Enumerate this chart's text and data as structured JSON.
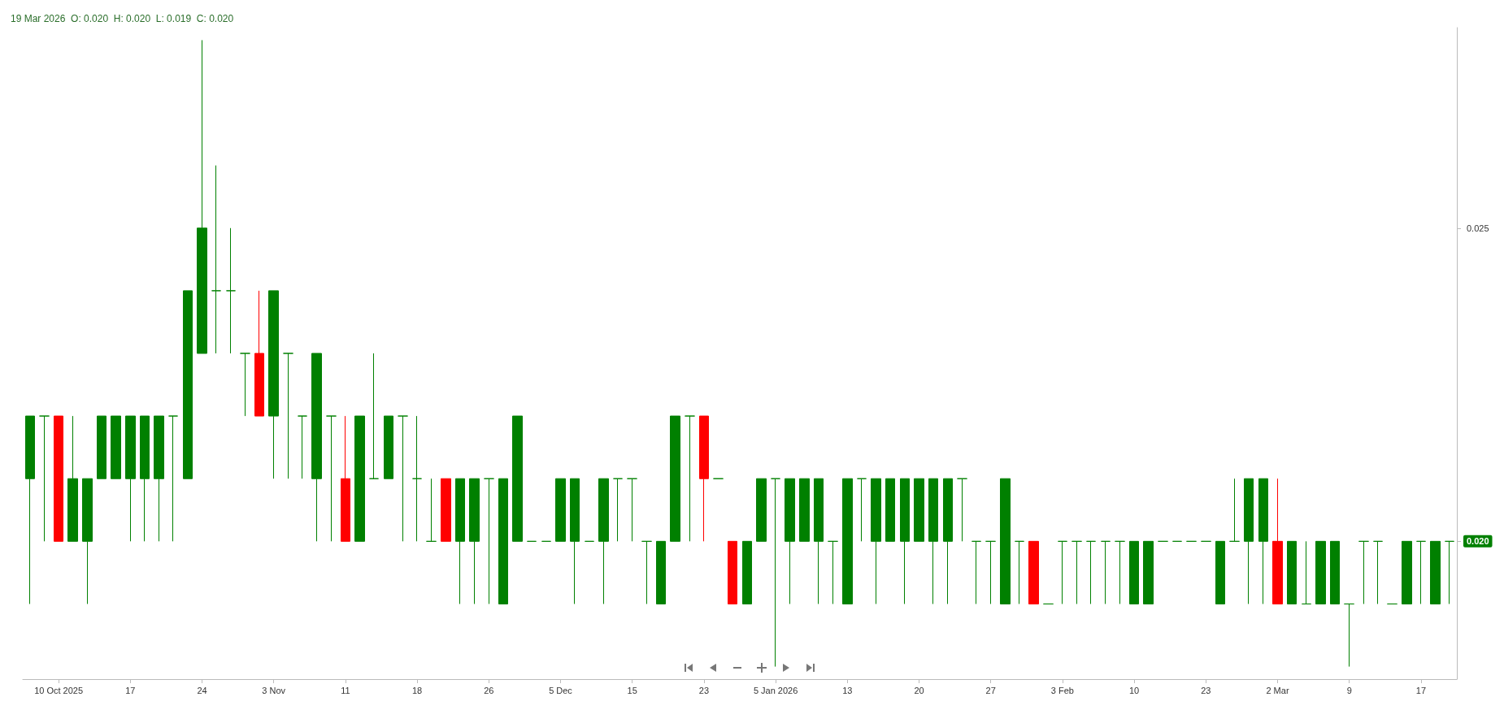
{
  "chart_data": {
    "type": "candlestick",
    "title": "19 Mar 2026  O: 0.020  H: 0.020  L: 0.019  C: 0.020",
    "categories": [
      null,
      null,
      "10 Oct 2025",
      null,
      null,
      null,
      null,
      "17",
      null,
      null,
      null,
      null,
      "24",
      null,
      null,
      null,
      null,
      "3 Nov",
      null,
      null,
      null,
      null,
      "11",
      null,
      null,
      null,
      null,
      "18",
      null,
      null,
      null,
      null,
      "26",
      null,
      null,
      null,
      null,
      "5 Dec",
      null,
      null,
      null,
      null,
      "15",
      null,
      null,
      null,
      null,
      "23",
      null,
      null,
      null,
      null,
      "5 Jan 2026",
      null,
      null,
      null,
      null,
      "13",
      null,
      null,
      null,
      null,
      "20",
      null,
      null,
      null,
      null,
      "27",
      null,
      null,
      null,
      null,
      "3 Feb",
      null,
      null,
      null,
      null,
      "10",
      null,
      null,
      null,
      null,
      "23",
      null,
      null,
      null,
      null,
      "2 Mar",
      null,
      null,
      null,
      null,
      "9",
      null,
      null,
      null,
      null,
      "17",
      null,
      null
    ],
    "ohlc": [
      [
        0.021,
        0.022,
        0.019,
        0.022
      ],
      [
        0.022,
        0.022,
        0.02,
        0.022
      ],
      [
        0.022,
        0.022,
        0.02,
        0.02
      ],
      [
        0.02,
        0.022,
        0.02,
        0.021
      ],
      [
        0.02,
        0.021,
        0.019,
        0.021
      ],
      [
        0.021,
        0.022,
        0.021,
        0.022
      ],
      [
        0.021,
        0.022,
        0.021,
        0.022
      ],
      [
        0.021,
        0.022,
        0.02,
        0.022
      ],
      [
        0.021,
        0.022,
        0.02,
        0.022
      ],
      [
        0.021,
        0.022,
        0.02,
        0.022
      ],
      [
        0.022,
        0.022,
        0.02,
        0.022
      ],
      [
        0.021,
        0.024,
        0.021,
        0.024
      ],
      [
        0.023,
        0.028,
        0.023,
        0.025
      ],
      [
        0.024,
        0.026,
        0.023,
        0.024
      ],
      [
        0.024,
        0.025,
        0.023,
        0.024
      ],
      [
        0.023,
        0.023,
        0.022,
        0.023
      ],
      [
        0.023,
        0.024,
        0.022,
        0.022
      ],
      [
        0.022,
        0.024,
        0.021,
        0.024
      ],
      [
        0.023,
        0.023,
        0.021,
        0.023
      ],
      [
        0.022,
        0.022,
        0.021,
        0.022
      ],
      [
        0.021,
        0.023,
        0.02,
        0.023
      ],
      [
        0.022,
        0.022,
        0.02,
        0.022
      ],
      [
        0.021,
        0.022,
        0.02,
        0.02
      ],
      [
        0.02,
        0.022,
        0.02,
        0.022
      ],
      [
        0.021,
        0.023,
        0.021,
        0.021
      ],
      [
        0.021,
        0.022,
        0.021,
        0.022
      ],
      [
        0.022,
        0.022,
        0.02,
        0.022
      ],
      [
        0.021,
        0.022,
        0.02,
        0.021
      ],
      [
        0.02,
        0.021,
        0.02,
        0.02
      ],
      [
        0.021,
        0.021,
        0.02,
        0.02
      ],
      [
        0.02,
        0.021,
        0.019,
        0.021
      ],
      [
        0.02,
        0.021,
        0.019,
        0.021
      ],
      [
        0.021,
        0.021,
        0.019,
        0.021
      ],
      [
        0.019,
        0.021,
        0.019,
        0.021
      ],
      [
        0.02,
        0.022,
        0.02,
        0.022
      ],
      [
        0.02,
        0.02,
        0.02,
        0.02
      ],
      [
        0.02,
        0.02,
        0.02,
        0.02
      ],
      [
        0.02,
        0.021,
        0.02,
        0.021
      ],
      [
        0.02,
        0.021,
        0.019,
        0.021
      ],
      [
        0.02,
        0.02,
        0.02,
        0.02
      ],
      [
        0.02,
        0.021,
        0.019,
        0.021
      ],
      [
        0.021,
        0.021,
        0.02,
        0.021
      ],
      [
        0.021,
        0.021,
        0.02,
        0.021
      ],
      [
        0.02,
        0.02,
        0.019,
        0.02
      ],
      [
        0.019,
        0.02,
        0.019,
        0.02
      ],
      [
        0.02,
        0.022,
        0.02,
        0.022
      ],
      [
        0.022,
        0.022,
        0.02,
        0.022
      ],
      [
        0.022,
        0.022,
        0.02,
        0.021
      ],
      [
        0.021,
        0.021,
        0.021,
        0.021
      ],
      [
        0.02,
        0.02,
        0.019,
        0.019
      ],
      [
        0.019,
        0.02,
        0.019,
        0.02
      ],
      [
        0.02,
        0.021,
        0.02,
        0.021
      ],
      [
        0.021,
        0.021,
        0.018,
        0.021
      ],
      [
        0.02,
        0.021,
        0.019,
        0.021
      ],
      [
        0.02,
        0.021,
        0.02,
        0.021
      ],
      [
        0.02,
        0.021,
        0.019,
        0.021
      ],
      [
        0.02,
        0.02,
        0.019,
        0.02
      ],
      [
        0.019,
        0.021,
        0.019,
        0.021
      ],
      [
        0.021,
        0.021,
        0.02,
        0.021
      ],
      [
        0.02,
        0.021,
        0.019,
        0.021
      ],
      [
        0.02,
        0.021,
        0.02,
        0.021
      ],
      [
        0.02,
        0.021,
        0.019,
        0.021
      ],
      [
        0.02,
        0.021,
        0.02,
        0.021
      ],
      [
        0.02,
        0.021,
        0.019,
        0.021
      ],
      [
        0.02,
        0.021,
        0.019,
        0.021
      ],
      [
        0.021,
        0.021,
        0.02,
        0.021
      ],
      [
        0.02,
        0.02,
        0.019,
        0.02
      ],
      [
        0.02,
        0.02,
        0.019,
        0.02
      ],
      [
        0.019,
        0.021,
        0.019,
        0.021
      ],
      [
        0.02,
        0.02,
        0.019,
        0.02
      ],
      [
        0.02,
        0.02,
        0.019,
        0.019
      ],
      [
        0.019,
        0.019,
        0.019,
        0.019
      ],
      [
        0.02,
        0.02,
        0.019,
        0.02
      ],
      [
        0.02,
        0.02,
        0.019,
        0.02
      ],
      [
        0.02,
        0.02,
        0.019,
        0.02
      ],
      [
        0.02,
        0.02,
        0.019,
        0.02
      ],
      [
        0.02,
        0.02,
        0.019,
        0.02
      ],
      [
        0.019,
        0.02,
        0.019,
        0.02
      ],
      [
        0.019,
        0.02,
        0.019,
        0.02
      ],
      [
        0.02,
        0.02,
        0.02,
        0.02
      ],
      [
        0.02,
        0.02,
        0.02,
        0.02
      ],
      [
        0.02,
        0.02,
        0.02,
        0.02
      ],
      [
        0.02,
        0.02,
        0.02,
        0.02
      ],
      [
        0.019,
        0.02,
        0.019,
        0.02
      ],
      [
        0.02,
        0.021,
        0.02,
        0.02
      ],
      [
        0.02,
        0.021,
        0.019,
        0.021
      ],
      [
        0.02,
        0.021,
        0.019,
        0.021
      ],
      [
        0.02,
        0.021,
        0.019,
        0.019
      ],
      [
        0.019,
        0.02,
        0.019,
        0.02
      ],
      [
        0.019,
        0.02,
        0.019,
        0.019
      ],
      [
        0.019,
        0.02,
        0.019,
        0.02
      ],
      [
        0.019,
        0.02,
        0.019,
        0.02
      ],
      [
        0.019,
        0.019,
        0.018,
        0.019
      ],
      [
        0.02,
        0.02,
        0.019,
        0.02
      ],
      [
        0.02,
        0.02,
        0.019,
        0.02
      ],
      [
        0.019,
        0.019,
        0.019,
        0.019
      ],
      [
        0.019,
        0.02,
        0.019,
        0.02
      ],
      [
        0.02,
        0.02,
        0.019,
        0.02
      ],
      [
        0.019,
        0.02,
        0.019,
        0.02
      ],
      [
        0.02,
        0.02,
        0.019,
        0.02
      ]
    ],
    "colors": [
      "#008000",
      "#008000",
      "#ff0000",
      "#008000",
      "#008000",
      "#008000",
      "#008000",
      "#008000",
      "#008000",
      "#008000",
      "#008000",
      "#008000",
      "#008000",
      "#008000",
      "#008000",
      "#008000",
      "#ff0000",
      "#008000",
      "#008000",
      "#008000",
      "#008000",
      "#008000",
      "#ff0000",
      "#008000",
      "#008000",
      "#008000",
      "#008000",
      "#008000",
      "#008000",
      "#ff0000",
      "#008000",
      "#008000",
      "#008000",
      "#008000",
      "#008000",
      "#008000",
      "#008000",
      "#008000",
      "#008000",
      "#008000",
      "#008000",
      "#008000",
      "#008000",
      "#008000",
      "#008000",
      "#008000",
      "#008000",
      "#ff0000",
      "#008000",
      "#ff0000",
      "#008000",
      "#008000",
      "#008000",
      "#008000",
      "#008000",
      "#008000",
      "#008000",
      "#008000",
      "#008000",
      "#008000",
      "#008000",
      "#008000",
      "#008000",
      "#008000",
      "#008000",
      "#008000",
      "#008000",
      "#008000",
      "#008000",
      "#008000",
      "#ff0000",
      "#008000",
      "#008000",
      "#008000",
      "#008000",
      "#008000",
      "#008000",
      "#008000",
      "#008000",
      "#008000",
      "#008000",
      "#008000",
      "#008000",
      "#008000",
      "#008000",
      "#008000",
      "#008000",
      "#ff0000",
      "#008000",
      "#008000",
      "#008000",
      "#008000",
      "#008000",
      "#008000",
      "#008000",
      "#008000",
      "#008000",
      "#008000",
      "#008000",
      "#008000"
    ],
    "ylim": [
      0.0178,
      0.0282
    ],
    "yticks": [
      {
        "value": 0.02,
        "label": "0.020"
      },
      0.025
    ],
    "grid": false
  }
}
